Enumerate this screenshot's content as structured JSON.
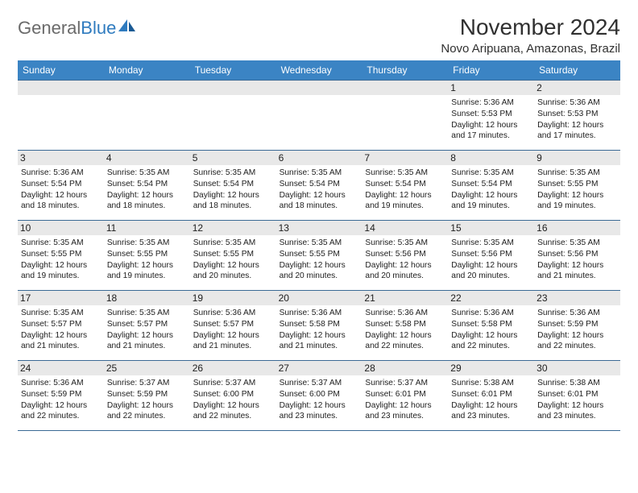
{
  "logo": {
    "text1": "General",
    "text2": "Blue"
  },
  "title": "November 2024",
  "location": "Novo Aripuana, Amazonas, Brazil",
  "header_bg": "#3b84c4",
  "border_color": "#3b6a95",
  "daynum_bg": "#e8e8e8",
  "weekdays": [
    "Sunday",
    "Monday",
    "Tuesday",
    "Wednesday",
    "Thursday",
    "Friday",
    "Saturday"
  ],
  "weeks": [
    [
      null,
      null,
      null,
      null,
      null,
      {
        "n": "1",
        "sr": "5:36 AM",
        "ss": "5:53 PM",
        "dl": "12 hours and 17 minutes."
      },
      {
        "n": "2",
        "sr": "5:36 AM",
        "ss": "5:53 PM",
        "dl": "12 hours and 17 minutes."
      }
    ],
    [
      {
        "n": "3",
        "sr": "5:36 AM",
        "ss": "5:54 PM",
        "dl": "12 hours and 18 minutes."
      },
      {
        "n": "4",
        "sr": "5:35 AM",
        "ss": "5:54 PM",
        "dl": "12 hours and 18 minutes."
      },
      {
        "n": "5",
        "sr": "5:35 AM",
        "ss": "5:54 PM",
        "dl": "12 hours and 18 minutes."
      },
      {
        "n": "6",
        "sr": "5:35 AM",
        "ss": "5:54 PM",
        "dl": "12 hours and 18 minutes."
      },
      {
        "n": "7",
        "sr": "5:35 AM",
        "ss": "5:54 PM",
        "dl": "12 hours and 19 minutes."
      },
      {
        "n": "8",
        "sr": "5:35 AM",
        "ss": "5:54 PM",
        "dl": "12 hours and 19 minutes."
      },
      {
        "n": "9",
        "sr": "5:35 AM",
        "ss": "5:55 PM",
        "dl": "12 hours and 19 minutes."
      }
    ],
    [
      {
        "n": "10",
        "sr": "5:35 AM",
        "ss": "5:55 PM",
        "dl": "12 hours and 19 minutes."
      },
      {
        "n": "11",
        "sr": "5:35 AM",
        "ss": "5:55 PM",
        "dl": "12 hours and 19 minutes."
      },
      {
        "n": "12",
        "sr": "5:35 AM",
        "ss": "5:55 PM",
        "dl": "12 hours and 20 minutes."
      },
      {
        "n": "13",
        "sr": "5:35 AM",
        "ss": "5:55 PM",
        "dl": "12 hours and 20 minutes."
      },
      {
        "n": "14",
        "sr": "5:35 AM",
        "ss": "5:56 PM",
        "dl": "12 hours and 20 minutes."
      },
      {
        "n": "15",
        "sr": "5:35 AM",
        "ss": "5:56 PM",
        "dl": "12 hours and 20 minutes."
      },
      {
        "n": "16",
        "sr": "5:35 AM",
        "ss": "5:56 PM",
        "dl": "12 hours and 21 minutes."
      }
    ],
    [
      {
        "n": "17",
        "sr": "5:35 AM",
        "ss": "5:57 PM",
        "dl": "12 hours and 21 minutes."
      },
      {
        "n": "18",
        "sr": "5:35 AM",
        "ss": "5:57 PM",
        "dl": "12 hours and 21 minutes."
      },
      {
        "n": "19",
        "sr": "5:36 AM",
        "ss": "5:57 PM",
        "dl": "12 hours and 21 minutes."
      },
      {
        "n": "20",
        "sr": "5:36 AM",
        "ss": "5:58 PM",
        "dl": "12 hours and 21 minutes."
      },
      {
        "n": "21",
        "sr": "5:36 AM",
        "ss": "5:58 PM",
        "dl": "12 hours and 22 minutes."
      },
      {
        "n": "22",
        "sr": "5:36 AM",
        "ss": "5:58 PM",
        "dl": "12 hours and 22 minutes."
      },
      {
        "n": "23",
        "sr": "5:36 AM",
        "ss": "5:59 PM",
        "dl": "12 hours and 22 minutes."
      }
    ],
    [
      {
        "n": "24",
        "sr": "5:36 AM",
        "ss": "5:59 PM",
        "dl": "12 hours and 22 minutes."
      },
      {
        "n": "25",
        "sr": "5:37 AM",
        "ss": "5:59 PM",
        "dl": "12 hours and 22 minutes."
      },
      {
        "n": "26",
        "sr": "5:37 AM",
        "ss": "6:00 PM",
        "dl": "12 hours and 22 minutes."
      },
      {
        "n": "27",
        "sr": "5:37 AM",
        "ss": "6:00 PM",
        "dl": "12 hours and 23 minutes."
      },
      {
        "n": "28",
        "sr": "5:37 AM",
        "ss": "6:01 PM",
        "dl": "12 hours and 23 minutes."
      },
      {
        "n": "29",
        "sr": "5:38 AM",
        "ss": "6:01 PM",
        "dl": "12 hours and 23 minutes."
      },
      {
        "n": "30",
        "sr": "5:38 AM",
        "ss": "6:01 PM",
        "dl": "12 hours and 23 minutes."
      }
    ]
  ],
  "labels": {
    "sunrise": "Sunrise:",
    "sunset": "Sunset:",
    "daylight": "Daylight:"
  }
}
